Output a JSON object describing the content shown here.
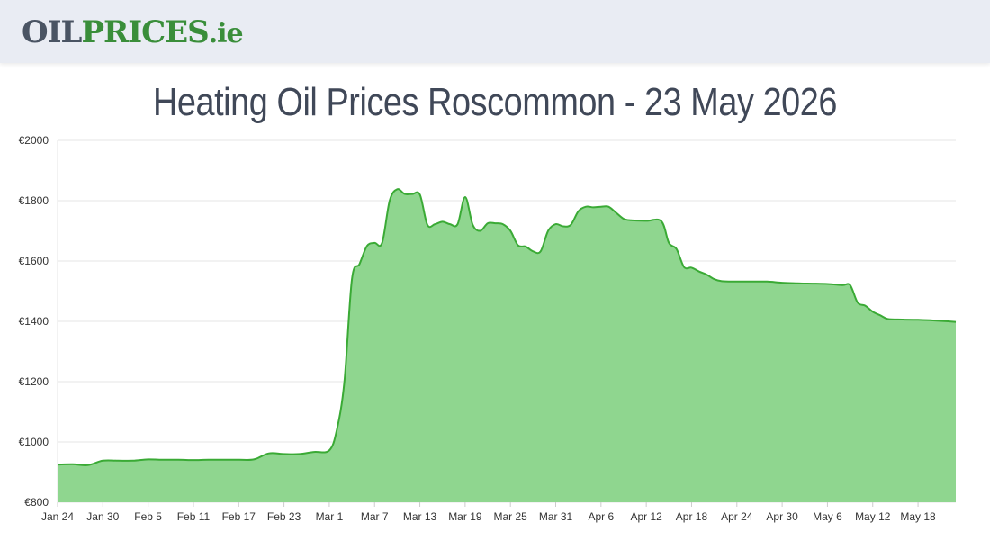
{
  "logo": {
    "part1": "OIL",
    "part2": "PRICES",
    "part3": ".ie"
  },
  "colors": {
    "line": "#3aaa35",
    "fill": "#8fd68f",
    "grid": "#e6e6e6",
    "header_bg": "#e9ecf3",
    "title": "#404858"
  },
  "chart_data": {
    "type": "area",
    "title": "Heating Oil Prices Roscommon - 23 May 2026",
    "xlabel": "",
    "ylabel": "",
    "ylim": [
      800,
      2000
    ],
    "yticks": [
      800,
      1000,
      1200,
      1400,
      1600,
      1800,
      2000
    ],
    "ytick_labels": [
      "€800",
      "€1000",
      "€1200",
      "€1400",
      "€1600",
      "€1800",
      "€2000"
    ],
    "xlim": [
      "2026-01-24",
      "2026-05-23"
    ],
    "xticks": [
      {
        "date": "2026-01-24",
        "label": "Jan 24"
      },
      {
        "date": "2026-01-30",
        "label": "Jan 30"
      },
      {
        "date": "2026-02-05",
        "label": "Feb 5"
      },
      {
        "date": "2026-02-11",
        "label": "Feb 11"
      },
      {
        "date": "2026-02-17",
        "label": "Feb 17"
      },
      {
        "date": "2026-02-23",
        "label": "Feb 23"
      },
      {
        "date": "2026-03-01",
        "label": "Mar 1"
      },
      {
        "date": "2026-03-07",
        "label": "Mar 7"
      },
      {
        "date": "2026-03-13",
        "label": "Mar 13"
      },
      {
        "date": "2026-03-19",
        "label": "Mar 19"
      },
      {
        "date": "2026-03-25",
        "label": "Mar 25"
      },
      {
        "date": "2026-03-31",
        "label": "Mar 31"
      },
      {
        "date": "2026-04-06",
        "label": "Apr 6"
      },
      {
        "date": "2026-04-12",
        "label": "Apr 12"
      },
      {
        "date": "2026-04-18",
        "label": "Apr 18"
      },
      {
        "date": "2026-04-24",
        "label": "Apr 24"
      },
      {
        "date": "2026-04-30",
        "label": "Apr 30"
      },
      {
        "date": "2026-05-06",
        "label": "May 6"
      },
      {
        "date": "2026-05-12",
        "label": "May 12"
      },
      {
        "date": "2026-05-18",
        "label": "May 18"
      }
    ],
    "grid": true,
    "legend": "none",
    "series": [
      {
        "points": [
          [
            "2026-01-24",
            925
          ],
          [
            "2026-01-26",
            926
          ],
          [
            "2026-01-28",
            923
          ],
          [
            "2026-01-30",
            938
          ],
          [
            "2026-02-01",
            938
          ],
          [
            "2026-02-03",
            938
          ],
          [
            "2026-02-05",
            942
          ],
          [
            "2026-02-07",
            941
          ],
          [
            "2026-02-09",
            941
          ],
          [
            "2026-02-11",
            940
          ],
          [
            "2026-02-13",
            941
          ],
          [
            "2026-02-15",
            941
          ],
          [
            "2026-02-17",
            941
          ],
          [
            "2026-02-19",
            942
          ],
          [
            "2026-02-21",
            962
          ],
          [
            "2026-02-23",
            960
          ],
          [
            "2026-02-25",
            960
          ],
          [
            "2026-02-27",
            967
          ],
          [
            "2026-03-01",
            972
          ],
          [
            "2026-03-02",
            1040
          ],
          [
            "2026-03-03",
            1200
          ],
          [
            "2026-03-04",
            1540
          ],
          [
            "2026-03-05",
            1590
          ],
          [
            "2026-03-06",
            1650
          ],
          [
            "2026-03-07",
            1660
          ],
          [
            "2026-03-08",
            1660
          ],
          [
            "2026-03-09",
            1800
          ],
          [
            "2026-03-10",
            1838
          ],
          [
            "2026-03-11",
            1822
          ],
          [
            "2026-03-12",
            1822
          ],
          [
            "2026-03-13",
            1820
          ],
          [
            "2026-03-14",
            1720
          ],
          [
            "2026-03-15",
            1722
          ],
          [
            "2026-03-16",
            1730
          ],
          [
            "2026-03-17",
            1722
          ],
          [
            "2026-03-18",
            1722
          ],
          [
            "2026-03-19",
            1812
          ],
          [
            "2026-03-20",
            1720
          ],
          [
            "2026-03-21",
            1700
          ],
          [
            "2026-03-22",
            1725
          ],
          [
            "2026-03-23",
            1725
          ],
          [
            "2026-03-24",
            1722
          ],
          [
            "2026-03-25",
            1700
          ],
          [
            "2026-03-26",
            1652
          ],
          [
            "2026-03-27",
            1648
          ],
          [
            "2026-03-28",
            1632
          ],
          [
            "2026-03-29",
            1632
          ],
          [
            "2026-03-30",
            1700
          ],
          [
            "2026-03-31",
            1722
          ],
          [
            "2026-04-01",
            1715
          ],
          [
            "2026-04-02",
            1720
          ],
          [
            "2026-04-03",
            1765
          ],
          [
            "2026-04-04",
            1780
          ],
          [
            "2026-04-05",
            1778
          ],
          [
            "2026-04-06",
            1780
          ],
          [
            "2026-04-07",
            1780
          ],
          [
            "2026-04-08",
            1760
          ],
          [
            "2026-04-09",
            1740
          ],
          [
            "2026-04-10",
            1735
          ],
          [
            "2026-04-12",
            1733
          ],
          [
            "2026-04-14",
            1732
          ],
          [
            "2026-04-15",
            1660
          ],
          [
            "2026-04-16",
            1640
          ],
          [
            "2026-04-17",
            1580
          ],
          [
            "2026-04-18",
            1578
          ],
          [
            "2026-04-19",
            1565
          ],
          [
            "2026-04-20",
            1555
          ],
          [
            "2026-04-21",
            1540
          ],
          [
            "2026-04-22",
            1533
          ],
          [
            "2026-04-24",
            1532
          ],
          [
            "2026-04-26",
            1532
          ],
          [
            "2026-04-28",
            1532
          ],
          [
            "2026-04-30",
            1528
          ],
          [
            "2026-05-02",
            1526
          ],
          [
            "2026-05-04",
            1525
          ],
          [
            "2026-05-06",
            1524
          ],
          [
            "2026-05-08",
            1520
          ],
          [
            "2026-05-09",
            1520
          ],
          [
            "2026-05-10",
            1462
          ],
          [
            "2026-05-11",
            1452
          ],
          [
            "2026-05-12",
            1432
          ],
          [
            "2026-05-13",
            1420
          ],
          [
            "2026-05-14",
            1408
          ],
          [
            "2026-05-16",
            1406
          ],
          [
            "2026-05-18",
            1405
          ],
          [
            "2026-05-20",
            1403
          ],
          [
            "2026-05-22",
            1400
          ],
          [
            "2026-05-23",
            1398
          ]
        ]
      }
    ]
  }
}
